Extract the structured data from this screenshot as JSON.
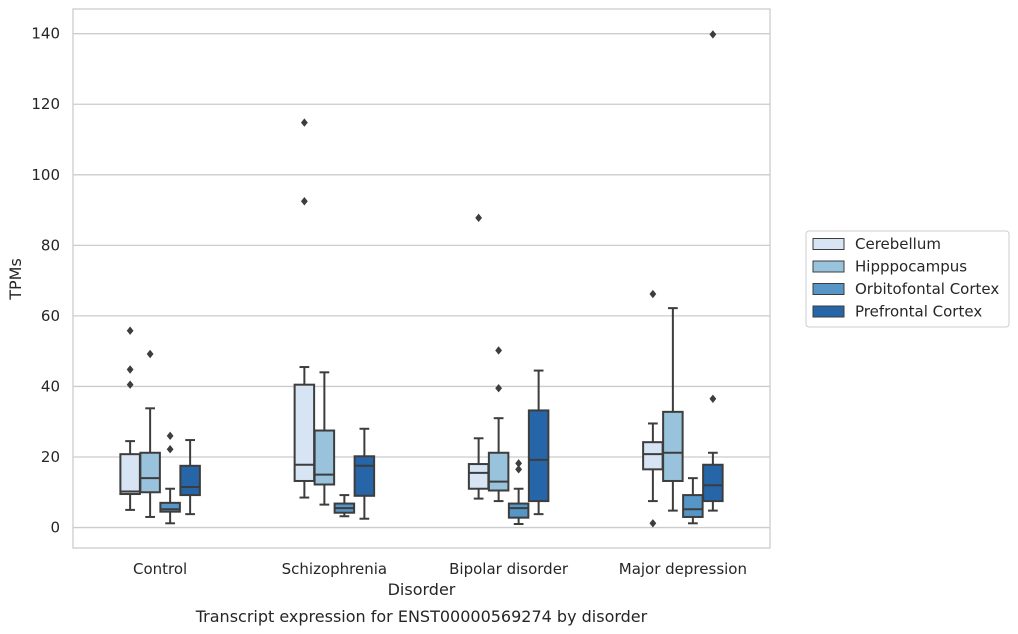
{
  "caption": "Transcript expression for ENST00000569274 by disorder",
  "chart_data": {
    "type": "box",
    "xlabel": "Disorder",
    "ylabel": "TPMs",
    "ylim": [
      -5.8,
      147
    ],
    "yticks": [
      0,
      20,
      40,
      60,
      80,
      100,
      120,
      140
    ],
    "grid": true,
    "legend_position": "right",
    "categories": [
      "Control",
      "Schizophrenia",
      "Bipolar disorder",
      "Major depression"
    ],
    "series": [
      {
        "name": "Cerebellum",
        "color": "#d6e4f3",
        "boxes": [
          {
            "whislo": 5,
            "q1": 9.5,
            "med": 10.2,
            "q3": 20.8,
            "whishi": 24.5,
            "fliers": [
              40.5,
              44.8,
              55.8
            ]
          },
          {
            "whislo": 8.5,
            "q1": 13.2,
            "med": 17.8,
            "q3": 40.5,
            "whishi": 45.5,
            "fliers": [
              92.5,
              114.8
            ]
          },
          {
            "whislo": 8.2,
            "q1": 11,
            "med": 15.5,
            "q3": 18,
            "whishi": 25.3,
            "fliers": [
              87.8
            ]
          },
          {
            "whislo": 7.5,
            "q1": 16.5,
            "med": 20.8,
            "q3": 24.2,
            "whishi": 29.5,
            "fliers": [
              1.2,
              66.2
            ]
          }
        ]
      },
      {
        "name": "Hipppocampus",
        "color": "#99c2dd",
        "boxes": [
          {
            "whislo": 3,
            "q1": 10,
            "med": 14,
            "q3": 21.2,
            "whishi": 33.8,
            "fliers": [
              49.2
            ]
          },
          {
            "whislo": 6.5,
            "q1": 12.2,
            "med": 15,
            "q3": 27.5,
            "whishi": 44,
            "fliers": []
          },
          {
            "whislo": 7.5,
            "q1": 10.5,
            "med": 13,
            "q3": 21.2,
            "whishi": 31,
            "fliers": [
              39.5,
              50.2
            ]
          },
          {
            "whislo": 4.8,
            "q1": 13.2,
            "med": 21.2,
            "q3": 32.8,
            "whishi": 62.2,
            "fliers": []
          }
        ]
      },
      {
        "name": "Orbitofontal Cortex",
        "color": "#5596c6",
        "boxes": [
          {
            "whislo": 1.2,
            "q1": 4.5,
            "med": 5.2,
            "q3": 7,
            "whishi": 11,
            "fliers": [
              22.2,
              26
            ]
          },
          {
            "whislo": 3.2,
            "q1": 4.2,
            "med": 5.5,
            "q3": 6.8,
            "whishi": 9.2,
            "fliers": []
          },
          {
            "whislo": 1,
            "q1": 2.8,
            "med": 5.5,
            "q3": 6.8,
            "whishi": 11,
            "fliers": [
              16.5,
              18.2
            ]
          },
          {
            "whislo": 1.2,
            "q1": 3,
            "med": 5.2,
            "q3": 9.2,
            "whishi": 14,
            "fliers": []
          }
        ]
      },
      {
        "name": "Prefrontal Cortex",
        "color": "#2565a8",
        "boxes": [
          {
            "whislo": 3.8,
            "q1": 9.2,
            "med": 11.5,
            "q3": 17.5,
            "whishi": 24.8,
            "fliers": []
          },
          {
            "whislo": 2.5,
            "q1": 9,
            "med": 17.5,
            "q3": 20.2,
            "whishi": 28,
            "fliers": []
          },
          {
            "whislo": 3.8,
            "q1": 7.5,
            "med": 19.2,
            "q3": 33.2,
            "whishi": 44.5,
            "fliers": []
          },
          {
            "whislo": 4.8,
            "q1": 7.5,
            "med": 12,
            "q3": 17.8,
            "whishi": 21.2,
            "fliers": [
              36.5,
              139.8
            ]
          }
        ]
      }
    ]
  }
}
